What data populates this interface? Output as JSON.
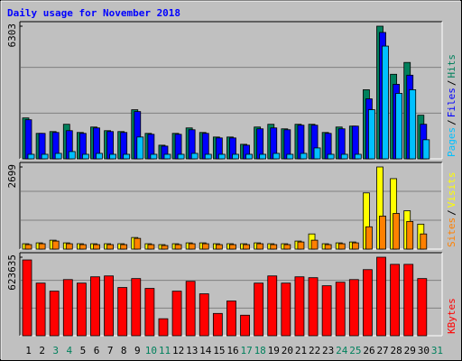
{
  "chart_data": [
    {
      "type": "bar",
      "title": "Daily usage for November 2018",
      "ylim": [
        0,
        6303
      ],
      "yticks": [
        6303
      ],
      "series": [
        {
          "name": "Hits",
          "color": "#00805c",
          "values": [
            1944,
            1210,
            1296,
            1642,
            1253,
            1512,
            1339,
            1296,
            2333,
            1210,
            648,
            1210,
            1469,
            1253,
            1037,
            1037,
            691,
            1512,
            1642,
            1426,
            1642,
            1642,
            1253,
            1512,
            1555,
            3283,
            6303,
            4018,
            4579,
            2074,
            null
          ]
        },
        {
          "name": "Files",
          "color": "#0000ff",
          "values": [
            1858,
            1210,
            1253,
            1339,
            1210,
            1469,
            1296,
            1253,
            2246,
            1166,
            605,
            1166,
            1382,
            1210,
            994,
            994,
            648,
            1426,
            1469,
            1382,
            1598,
            1598,
            1210,
            1426,
            1555,
            2851,
            6005,
            3542,
            3974,
            1642,
            null
          ]
        },
        {
          "name": "Pages",
          "color": "#00c0ff",
          "values": [
            216,
            216,
            259,
            346,
            216,
            259,
            216,
            216,
            1037,
            216,
            216,
            216,
            259,
            216,
            216,
            216,
            216,
            216,
            259,
            216,
            259,
            518,
            216,
            216,
            216,
            2333,
            5357,
            3110,
            3283,
            907,
            null
          ]
        }
      ]
    },
    {
      "type": "bar",
      "ylim": [
        0,
        2699
      ],
      "yticks": [
        2699
      ],
      "series": [
        {
          "name": "Visits",
          "color": "#ffff00",
          "values": [
            176,
            205,
            293,
            205,
            176,
            176,
            176,
            176,
            381,
            176,
            147,
            176,
            205,
            205,
            176,
            176,
            176,
            205,
            176,
            176,
            264,
            498,
            176,
            205,
            234,
            1846,
            2699,
            2315,
            1260,
            820,
            null
          ]
        },
        {
          "name": "Sites",
          "color": "#ff8000",
          "values": [
            147,
            176,
            264,
            176,
            147,
            147,
            147,
            147,
            352,
            147,
            117,
            147,
            176,
            176,
            147,
            147,
            147,
            176,
            147,
            147,
            234,
            293,
            147,
            176,
            205,
            733,
            1084,
            1172,
            908,
            498,
            null
          ]
        }
      ]
    },
    {
      "type": "bar",
      "ylim": [
        0,
        623635
      ],
      "yticks": [
        623635
      ],
      "categories": [
        "1",
        "2",
        "3",
        "4",
        "5",
        "6",
        "7",
        "8",
        "9",
        "10",
        "11",
        "12",
        "13",
        "14",
        "15",
        "16",
        "17",
        "18",
        "19",
        "20",
        "21",
        "22",
        "23",
        "24",
        "25",
        "26",
        "27",
        "28",
        "29",
        "30",
        "31"
      ],
      "category_colors": [
        "#000000",
        "#000000",
        "#00805c",
        "#00805c",
        "#000000",
        "#000000",
        "#000000",
        "#000000",
        "#000000",
        "#00805c",
        "#00805c",
        "#000000",
        "#000000",
        "#000000",
        "#000000",
        "#000000",
        "#00805c",
        "#00805c",
        "#000000",
        "#000000",
        "#000000",
        "#000000",
        "#000000",
        "#00805c",
        "#00805c",
        "#000000",
        "#000000",
        "#000000",
        "#000000",
        "#000000",
        "#00805c"
      ],
      "series": [
        {
          "name": "KBytes",
          "color": "#ff0000",
          "values": [
            602000,
            418000,
            354000,
            446000,
            418000,
            468000,
            475000,
            383000,
            454000,
            376000,
            135000,
            354000,
            432000,
            333000,
            177000,
            276000,
            163000,
            418000,
            475000,
            418000,
            468000,
            461000,
            397000,
            425000,
            446000,
            525000,
            623635,
            567000,
            567000,
            454000,
            null
          ]
        }
      ]
    }
  ],
  "legend_separator": "/"
}
